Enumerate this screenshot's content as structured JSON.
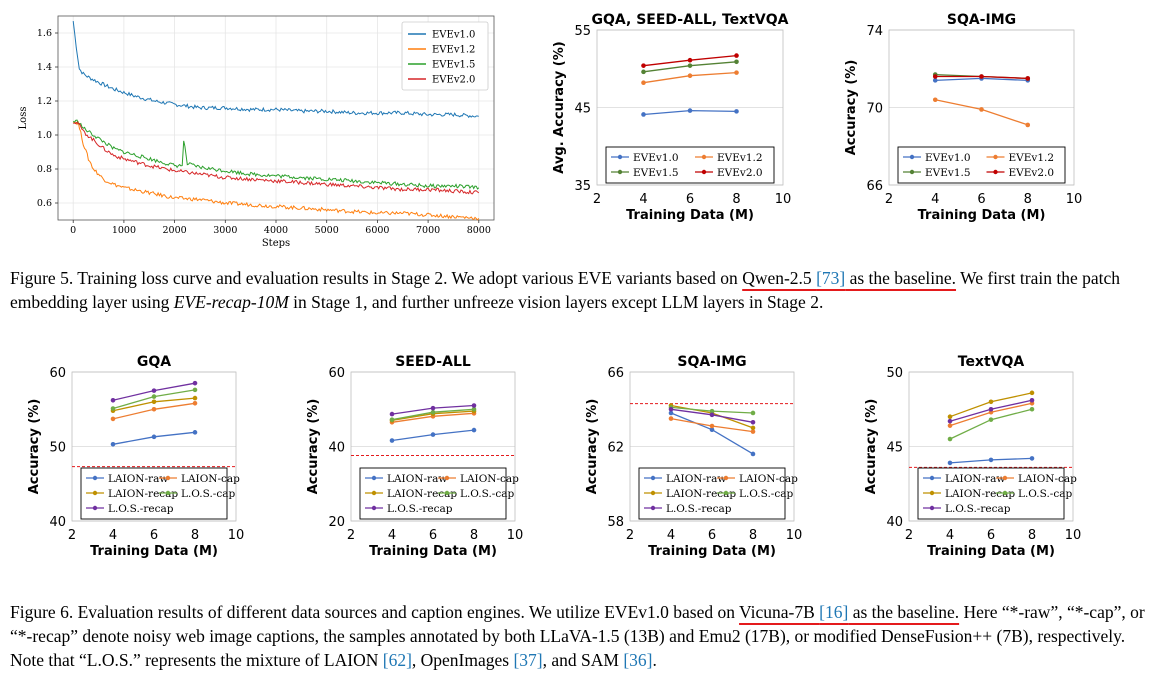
{
  "chart_data": [
    {
      "id": "loss",
      "type": "line",
      "title": "",
      "xlabel": "Steps",
      "ylabel": "Loss",
      "xlim": [
        -300,
        8300
      ],
      "ylim": [
        0.5,
        1.7
      ],
      "xticks": [
        0,
        1000,
        2000,
        3000,
        4000,
        5000,
        6000,
        7000,
        8000
      ],
      "yticks": [
        0.6,
        0.8,
        1.0,
        1.2,
        1.4,
        1.6
      ],
      "ytick_labels": [
        "0.6",
        "0.8",
        "1.0",
        "1.2",
        "1.4",
        "1.6"
      ],
      "grid": true,
      "legend": "top-right",
      "series": [
        {
          "name": "EVEv1.0",
          "color": "#1f77b4",
          "x": [
            0,
            60,
            120,
            200,
            300,
            500,
            800,
            1200,
            1600,
            2000,
            2500,
            3000,
            3500,
            4000,
            4500,
            5000,
            5500,
            6000,
            6500,
            7000,
            7500,
            8000
          ],
          "y": [
            1.67,
            1.52,
            1.39,
            1.36,
            1.34,
            1.31,
            1.27,
            1.23,
            1.2,
            1.18,
            1.16,
            1.16,
            1.15,
            1.15,
            1.14,
            1.14,
            1.13,
            1.13,
            1.13,
            1.12,
            1.12,
            1.11
          ]
        },
        {
          "name": "EVEv1.2",
          "color": "#ff7f0e",
          "x": [
            0,
            100,
            200,
            300,
            400,
            600,
            800,
            1000,
            1500,
            2000,
            2500,
            3000,
            3500,
            4000,
            4500,
            5000,
            5500,
            6000,
            6500,
            7000,
            7500,
            8000
          ],
          "y": [
            1.08,
            1.07,
            0.95,
            0.86,
            0.8,
            0.74,
            0.71,
            0.69,
            0.66,
            0.63,
            0.62,
            0.6,
            0.59,
            0.58,
            0.57,
            0.56,
            0.55,
            0.54,
            0.54,
            0.53,
            0.52,
            0.51
          ]
        },
        {
          "name": "EVEv1.5",
          "color": "#2ca02c",
          "x": [
            0,
            100,
            200,
            400,
            600,
            800,
            1000,
            1500,
            2000,
            2150,
            2180,
            2250,
            2500,
            3000,
            3500,
            4000,
            4500,
            5000,
            5500,
            6000,
            6500,
            7000,
            7500,
            8000
          ],
          "y": [
            1.08,
            1.08,
            1.04,
            1.0,
            0.96,
            0.92,
            0.9,
            0.86,
            0.82,
            0.82,
            0.97,
            0.83,
            0.81,
            0.79,
            0.77,
            0.76,
            0.75,
            0.74,
            0.73,
            0.72,
            0.71,
            0.7,
            0.7,
            0.69
          ]
        },
        {
          "name": "EVEv2.0",
          "color": "#d62728",
          "x": [
            0,
            100,
            200,
            400,
            600,
            800,
            1000,
            1500,
            2000,
            2500,
            3000,
            3500,
            4000,
            4500,
            5000,
            5500,
            6000,
            6500,
            7000,
            7500,
            8000
          ],
          "y": [
            1.08,
            1.07,
            1.02,
            0.97,
            0.92,
            0.88,
            0.86,
            0.82,
            0.79,
            0.77,
            0.75,
            0.74,
            0.73,
            0.72,
            0.71,
            0.7,
            0.69,
            0.68,
            0.68,
            0.67,
            0.66
          ]
        }
      ]
    },
    {
      "id": "gqa_seed_textvqa",
      "type": "line",
      "title": "GQA, SEED-ALL, TextVQA",
      "xlabel": "Training Data (M)",
      "ylabel": "Avg. Accuracy (%)",
      "xlim": [
        2,
        10
      ],
      "ylim": [
        35,
        55
      ],
      "xticks": [
        2,
        4,
        6,
        8,
        10
      ],
      "yticks": [
        35,
        45,
        55
      ],
      "legend": "bottom-center",
      "legend_cols": 2,
      "series": [
        {
          "name": "EVEv1.0",
          "color": "#4472c4",
          "x": [
            4,
            6,
            8
          ],
          "y": [
            44.1,
            44.6,
            44.5
          ]
        },
        {
          "name": "EVEv1.2",
          "color": "#ed7d31",
          "x": [
            4,
            6,
            8
          ],
          "y": [
            48.2,
            49.1,
            49.5
          ]
        },
        {
          "name": "EVEv1.5",
          "color": "#548235",
          "x": [
            4,
            6,
            8
          ],
          "y": [
            49.6,
            50.4,
            50.9
          ]
        },
        {
          "name": "EVEv2.0",
          "color": "#c00000",
          "x": [
            4,
            6,
            8
          ],
          "y": [
            50.4,
            51.1,
            51.7
          ]
        }
      ]
    },
    {
      "id": "sqa_img_top",
      "type": "line",
      "title": "SQA-IMG",
      "xlabel": "Training Data (M)",
      "ylabel": "Accuracy (%)",
      "xlim": [
        2,
        10
      ],
      "ylim": [
        66,
        74
      ],
      "xticks": [
        2,
        4,
        6,
        8,
        10
      ],
      "yticks": [
        66,
        70,
        74
      ],
      "legend": "bottom-center",
      "legend_cols": 2,
      "series": [
        {
          "name": "EVEv1.0",
          "color": "#4472c4",
          "x": [
            4,
            6,
            8
          ],
          "y": [
            71.4,
            71.5,
            71.4
          ]
        },
        {
          "name": "EVEv1.2",
          "color": "#ed7d31",
          "x": [
            4,
            6,
            8
          ],
          "y": [
            70.4,
            69.9,
            69.1
          ]
        },
        {
          "name": "EVEv1.5",
          "color": "#548235",
          "x": [
            4,
            6,
            8
          ],
          "y": [
            71.7,
            71.6,
            71.5
          ]
        },
        {
          "name": "EVEv2.0",
          "color": "#c00000",
          "x": [
            4,
            6,
            8
          ],
          "y": [
            71.6,
            71.6,
            71.5
          ]
        }
      ]
    },
    {
      "id": "gqa",
      "type": "line",
      "title": "GQA",
      "xlabel": "Training Data (M)",
      "ylabel": "Accuracy (%)",
      "xlim": [
        2,
        10
      ],
      "ylim": [
        40,
        60
      ],
      "xticks": [
        2,
        4,
        6,
        8,
        10
      ],
      "yticks": [
        40,
        50,
        60
      ],
      "reference_line": 47.3,
      "legend": "bottom-center",
      "legend_cols": 2,
      "series": [
        {
          "name": "LAION-raw",
          "color": "#4472c4",
          "x": [
            4,
            6,
            8
          ],
          "y": [
            50.3,
            51.3,
            51.9
          ]
        },
        {
          "name": "LAION-cap",
          "color": "#ed7d31",
          "x": [
            4,
            6,
            8
          ],
          "y": [
            53.7,
            55.0,
            55.8
          ]
        },
        {
          "name": "LAION-recap",
          "color": "#bf9000",
          "x": [
            4,
            6,
            8
          ],
          "y": [
            54.8,
            56.0,
            56.5
          ]
        },
        {
          "name": "L.O.S.-cap",
          "color": "#70ad47",
          "x": [
            4,
            6,
            8
          ],
          "y": [
            55.1,
            56.7,
            57.6
          ]
        },
        {
          "name": "L.O.S.-recap",
          "color": "#7030a0",
          "x": [
            4,
            6,
            8
          ],
          "y": [
            56.2,
            57.5,
            58.5
          ]
        }
      ]
    },
    {
      "id": "seed_all",
      "type": "line",
      "title": "SEED-ALL",
      "xlabel": "Training Data (M)",
      "ylabel": "Accuracy (%)",
      "xlim": [
        2,
        10
      ],
      "ylim": [
        20,
        60
      ],
      "xticks": [
        2,
        4,
        6,
        8,
        10
      ],
      "yticks": [
        20,
        40,
        60
      ],
      "reference_line": 37.6,
      "legend": "bottom-center",
      "legend_cols": 2,
      "series": [
        {
          "name": "LAION-raw",
          "color": "#4472c4",
          "x": [
            4,
            6,
            8
          ],
          "y": [
            41.6,
            43.2,
            44.4
          ]
        },
        {
          "name": "LAION-cap",
          "color": "#ed7d31",
          "x": [
            4,
            6,
            8
          ],
          "y": [
            46.5,
            48.1,
            48.9
          ]
        },
        {
          "name": "LAION-recap",
          "color": "#bf9000",
          "x": [
            4,
            6,
            8
          ],
          "y": [
            47.0,
            48.8,
            49.5
          ]
        },
        {
          "name": "L.O.S.-cap",
          "color": "#70ad47",
          "x": [
            4,
            6,
            8
          ],
          "y": [
            47.2,
            49.2,
            50.0
          ]
        },
        {
          "name": "L.O.S.-recap",
          "color": "#7030a0",
          "x": [
            4,
            6,
            8
          ],
          "y": [
            48.7,
            50.3,
            51.0
          ]
        }
      ]
    },
    {
      "id": "sqa_img_bottom",
      "type": "line",
      "title": "SQA-IMG",
      "xlabel": "Training Data (M)",
      "ylabel": "Accuracy (%)",
      "xlim": [
        2,
        10
      ],
      "ylim": [
        58,
        66
      ],
      "xticks": [
        2,
        4,
        6,
        8,
        10
      ],
      "yticks": [
        58,
        62,
        66
      ],
      "reference_line": 64.3,
      "legend": "bottom-center",
      "legend_cols": 2,
      "series": [
        {
          "name": "LAION-raw",
          "color": "#4472c4",
          "x": [
            4,
            6,
            8
          ],
          "y": [
            63.8,
            62.9,
            61.6
          ]
        },
        {
          "name": "LAION-cap",
          "color": "#ed7d31",
          "x": [
            4,
            6,
            8
          ],
          "y": [
            63.5,
            63.1,
            62.8
          ]
        },
        {
          "name": "LAION-recap",
          "color": "#bf9000",
          "x": [
            4,
            6,
            8
          ],
          "y": [
            64.2,
            63.8,
            63.0
          ]
        },
        {
          "name": "L.O.S.-cap",
          "color": "#70ad47",
          "x": [
            4,
            6,
            8
          ],
          "y": [
            64.1,
            63.9,
            63.8
          ]
        },
        {
          "name": "L.O.S.-recap",
          "color": "#7030a0",
          "x": [
            4,
            6,
            8
          ],
          "y": [
            64.0,
            63.7,
            63.3
          ]
        }
      ]
    },
    {
      "id": "textvqa",
      "type": "line",
      "title": "TextVQA",
      "xlabel": "Training Data (M)",
      "ylabel": "Accuracy (%)",
      "xlim": [
        2,
        10
      ],
      "ylim": [
        40,
        50
      ],
      "xticks": [
        2,
        4,
        6,
        8,
        10
      ],
      "yticks": [
        40,
        45,
        50
      ],
      "reference_line": 43.6,
      "legend": "bottom-center",
      "legend_cols": 2,
      "series": [
        {
          "name": "LAION-raw",
          "color": "#4472c4",
          "x": [
            4,
            6,
            8
          ],
          "y": [
            43.9,
            44.1,
            44.2
          ]
        },
        {
          "name": "LAION-cap",
          "color": "#ed7d31",
          "x": [
            4,
            6,
            8
          ],
          "y": [
            46.4,
            47.3,
            47.9
          ]
        },
        {
          "name": "LAION-recap",
          "color": "#bf9000",
          "x": [
            4,
            6,
            8
          ],
          "y": [
            47.0,
            48.0,
            48.6
          ]
        },
        {
          "name": "L.O.S.-cap",
          "color": "#70ad47",
          "x": [
            4,
            6,
            8
          ],
          "y": [
            45.5,
            46.8,
            47.5
          ]
        },
        {
          "name": "L.O.S.-recap",
          "color": "#7030a0",
          "x": [
            4,
            6,
            8
          ],
          "y": [
            46.7,
            47.5,
            48.1
          ]
        }
      ]
    }
  ],
  "captions": {
    "fig5": {
      "label": "Figure 5.",
      "t1": " Training loss curve and evaluation results in Stage 2. We adopt various EVE variants based on ",
      "u1": "Qwen-2.5 ",
      "u_cite": "[73]",
      "u2": " as the baseline.",
      "t2": " We first train the patch embedding layer using ",
      "em": "EVE-recap-10M",
      "t3": " in Stage 1, and further unfreeze vision layers except LLM layers in Stage 2."
    },
    "fig6": {
      "label": "Figure 6.",
      "t1": " Evaluation results of different data sources and caption engines. We utilize EVEv1.0 based on ",
      "u1": "Vicuna-7B ",
      "u_cite": "[16]",
      "u2": " as the baseline.",
      "t2": " Here “*-raw”, “*-cap”, or “*-recap” denote noisy web image captions, the samples annotated by both LLaVA-1.5 (13B) and Emu2 (17B), or modified DenseFusion++ (7B), respectively. Note that “L.O.S.” represents the mixture of LAION ",
      "c1": "[62]",
      "t3": ", OpenImages ",
      "c2": "[37]",
      "t4": ", and SAM ",
      "c3": "[36]",
      "t5": "."
    }
  }
}
